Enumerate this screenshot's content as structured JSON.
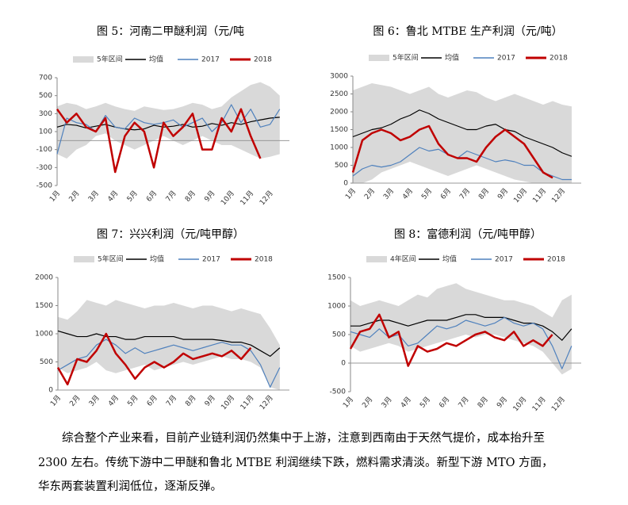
{
  "chart_data": [
    {
      "type": "line",
      "title": "图 5：河南二甲醚利润（元/吨",
      "categories": [
        "1月",
        null,
        "2月",
        null,
        "3月",
        null,
        "4月",
        null,
        "5月",
        null,
        "6月",
        null,
        "7月",
        null,
        "8月",
        null,
        "9月",
        null,
        "10月",
        null,
        "11月",
        null,
        "12月",
        null
      ],
      "ylim": [
        -500,
        700
      ],
      "yticks": [
        -500,
        -300,
        -100,
        100,
        300,
        500,
        700
      ],
      "series": [
        {
          "name": "5年区间",
          "color": "#d9d9d9",
          "high": [
            380,
            420,
            400,
            350,
            380,
            420,
            380,
            350,
            330,
            380,
            360,
            340,
            350,
            380,
            420,
            400,
            350,
            380,
            480,
            550,
            620,
            650,
            600,
            500
          ],
          "low": [
            -150,
            -200,
            -100,
            -50,
            50,
            80,
            0,
            -50,
            -100,
            -50,
            0,
            50,
            0,
            -50,
            0,
            50,
            0,
            -50,
            -50,
            -100,
            -150,
            -200,
            -180,
            -150
          ]
        },
        {
          "name": "均值",
          "color": "#000000",
          "values": [
            150,
            180,
            170,
            140,
            160,
            180,
            150,
            130,
            120,
            130,
            170,
            150,
            160,
            180,
            150,
            160,
            190,
            170,
            200,
            180,
            210,
            230,
            250,
            260
          ]
        },
        {
          "name": "2017",
          "color": "#4f81bd",
          "values": [
            -150,
            250,
            200,
            180,
            100,
            280,
            150,
            130,
            250,
            200,
            180,
            200,
            230,
            150,
            200,
            250,
            100,
            200,
            400,
            200,
            350,
            150,
            180,
            350
          ]
        },
        {
          "name": "2018",
          "color": "#c00000",
          "values": [
            350,
            200,
            300,
            150,
            100,
            250,
            -350,
            50,
            200,
            100,
            -300,
            200,
            50,
            150,
            300,
            -100,
            -100,
            250,
            100,
            350,
            50,
            -200,
            null,
            null
          ]
        }
      ]
    },
    {
      "type": "line",
      "title": "图 6：鲁北 MTBE 生产利润（元/吨）",
      "categories": [
        "1月",
        null,
        "2月",
        null,
        "3月",
        null,
        "4月",
        null,
        "5月",
        null,
        "6月",
        null,
        "7月",
        null,
        "8月",
        null,
        "9月",
        null,
        "10月",
        null,
        "11月",
        null,
        "12月",
        null
      ],
      "ylim": [
        0,
        3000
      ],
      "yticks": [
        0,
        500,
        1000,
        1500,
        2000,
        2500,
        3000
      ],
      "series": [
        {
          "name": "5年区间",
          "color": "#d9d9d9",
          "high": [
            2600,
            2700,
            2800,
            2750,
            2700,
            2600,
            2500,
            2600,
            2700,
            2500,
            2400,
            2500,
            2600,
            2550,
            2400,
            2300,
            2400,
            2500,
            2400,
            2300,
            2200,
            2300,
            2200,
            2150
          ],
          "low": [
            0,
            0,
            100,
            300,
            400,
            500,
            600,
            500,
            400,
            300,
            200,
            300,
            400,
            500,
            400,
            300,
            200,
            100,
            50,
            0,
            0,
            0,
            0,
            0
          ]
        },
        {
          "name": "均值",
          "color": "#000000",
          "values": [
            1300,
            1400,
            1500,
            1550,
            1650,
            1800,
            1900,
            2050,
            1950,
            1800,
            1700,
            1600,
            1500,
            1500,
            1600,
            1650,
            1500,
            1450,
            1300,
            1200,
            1100,
            1000,
            850,
            750
          ]
        },
        {
          "name": "2017",
          "color": "#4f81bd",
          "values": [
            200,
            400,
            500,
            450,
            500,
            600,
            800,
            1000,
            900,
            950,
            800,
            700,
            900,
            800,
            700,
            600,
            650,
            600,
            500,
            500,
            300,
            200,
            100,
            100
          ]
        },
        {
          "name": "2018",
          "color": "#c00000",
          "values": [
            300,
            1200,
            1400,
            1500,
            1400,
            1200,
            1300,
            1500,
            1600,
            1100,
            800,
            700,
            700,
            600,
            1000,
            1300,
            1500,
            1300,
            1100,
            700,
            300,
            150,
            null,
            null
          ]
        }
      ]
    },
    {
      "type": "line",
      "title": "图 7：兴兴利润（元/吨甲醇）",
      "categories": [
        "1月",
        null,
        "2月",
        null,
        "3月",
        null,
        "4月",
        null,
        "5月",
        null,
        "6月",
        null,
        "7月",
        null,
        "8月",
        null,
        "9月",
        null,
        "10月",
        null,
        "11月",
        null,
        "12月",
        null
      ],
      "ylim": [
        0,
        2000
      ],
      "yticks": [
        0,
        500,
        1000,
        1500,
        2000
      ],
      "series": [
        {
          "name": "5年区间",
          "color": "#d9d9d9",
          "high": [
            1300,
            1250,
            1400,
            1600,
            1550,
            1500,
            1600,
            1550,
            1500,
            1450,
            1500,
            1500,
            1550,
            1500,
            1450,
            1500,
            1500,
            1450,
            1400,
            1450,
            1400,
            1350,
            1100,
            800
          ],
          "low": [
            400,
            300,
            350,
            400,
            500,
            350,
            300,
            350,
            400,
            450,
            350,
            400,
            450,
            500,
            450,
            500,
            550,
            600,
            550,
            550,
            500,
            400,
            50,
            0
          ]
        },
        {
          "name": "均值",
          "color": "#000000",
          "values": [
            1050,
            1000,
            950,
            950,
            1000,
            950,
            950,
            900,
            900,
            950,
            950,
            950,
            950,
            900,
            900,
            900,
            900,
            880,
            850,
            850,
            800,
            700,
            600,
            750
          ]
        },
        {
          "name": "2017",
          "color": "#4f81bd",
          "values": [
            350,
            450,
            550,
            600,
            800,
            900,
            800,
            650,
            750,
            650,
            700,
            750,
            800,
            750,
            700,
            750,
            800,
            850,
            800,
            800,
            700,
            450,
            50,
            400
          ]
        },
        {
          "name": "2018",
          "color": "#c00000",
          "values": [
            400,
            100,
            550,
            500,
            700,
            1000,
            650,
            450,
            200,
            400,
            500,
            400,
            500,
            650,
            550,
            600,
            650,
            600,
            700,
            550,
            750,
            null,
            null,
            null
          ]
        }
      ]
    },
    {
      "type": "line",
      "title": "图 8：富德利润（元/吨甲醇）",
      "categories": [
        "1月",
        null,
        "2月",
        null,
        "3月",
        null,
        "4月",
        null,
        "5月",
        null,
        "6月",
        null,
        "7月",
        null,
        "8月",
        null,
        "9月",
        null,
        "10月",
        null,
        "11月",
        null,
        "12月",
        null
      ],
      "ylim": [
        -500,
        1500
      ],
      "yticks": [
        -500,
        0,
        500,
        1000,
        1500
      ],
      "series": [
        {
          "name": "4年区间",
          "color": "#d9d9d9",
          "high": [
            1100,
            1000,
            1050,
            1100,
            1050,
            1000,
            1100,
            1200,
            1150,
            1300,
            1350,
            1400,
            1300,
            1250,
            1200,
            1150,
            1100,
            1100,
            1050,
            1000,
            900,
            800,
            1100,
            1200
          ],
          "low": [
            300,
            200,
            250,
            300,
            350,
            300,
            200,
            250,
            300,
            350,
            400,
            450,
            500,
            450,
            500,
            500,
            450,
            400,
            350,
            300,
            200,
            0,
            -200,
            -100
          ]
        },
        {
          "name": "均值",
          "color": "#000000",
          "values": [
            650,
            650,
            700,
            750,
            750,
            700,
            650,
            700,
            750,
            750,
            750,
            800,
            850,
            850,
            800,
            800,
            800,
            750,
            700,
            700,
            650,
            550,
            400,
            600
          ]
        },
        {
          "name": "2017",
          "color": "#4f81bd",
          "values": [
            550,
            500,
            450,
            600,
            450,
            500,
            300,
            350,
            500,
            650,
            600,
            650,
            750,
            700,
            650,
            700,
            800,
            700,
            650,
            700,
            600,
            300,
            -100,
            300
          ]
        },
        {
          "name": "2018",
          "color": "#c00000",
          "values": [
            250,
            550,
            600,
            850,
            450,
            550,
            -50,
            300,
            200,
            250,
            350,
            300,
            400,
            500,
            550,
            450,
            400,
            550,
            300,
            400,
            300,
            500,
            null,
            null
          ]
        }
      ]
    }
  ],
  "text": {
    "lines": [
      "综合整个产业来看，目前产业链利润仍然集中于上游，注意到西南由于天然气提价，成本抬升至",
      "2300 左右。传统下游中二甲醚和鲁北 MTBE 利润继续下跌，燃料需求清淡。新型下游 MTO 方面，",
      "华东两套装置利润低位，逐渐反弹。"
    ]
  }
}
